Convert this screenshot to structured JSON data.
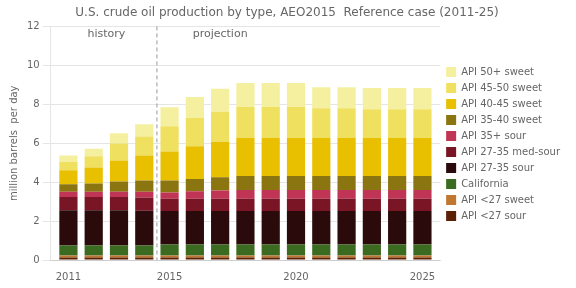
{
  "chart_data": {
    "type": "bar",
    "stacked": true,
    "title": "U.S. crude oil production by type, AEO2015  Reference case (2011-25)",
    "ylabel": "million barrels  per day",
    "x": [
      2011,
      2012,
      2013,
      2014,
      2015,
      2016,
      2017,
      2018,
      2019,
      2020,
      2021,
      2022,
      2023,
      2024,
      2025
    ],
    "xlim": [
      2010.3,
      2025.7
    ],
    "xticks": [
      2011,
      2015,
      2020,
      2025
    ],
    "ylim": [
      0,
      12
    ],
    "yticks": [
      0,
      2,
      4,
      6,
      8,
      10,
      12
    ],
    "grid": true,
    "legend": "right",
    "series": [
      {
        "name": "API <27 sour",
        "color": "#5c2005",
        "values": [
          0.13,
          0.13,
          0.13,
          0.13,
          0.13,
          0.13,
          0.13,
          0.13,
          0.13,
          0.13,
          0.13,
          0.13,
          0.13,
          0.13,
          0.13
        ]
      },
      {
        "name": "API <27 sweet",
        "color": "#c07830",
        "values": [
          0.1,
          0.1,
          0.1,
          0.1,
          0.1,
          0.1,
          0.1,
          0.1,
          0.1,
          0.1,
          0.1,
          0.1,
          0.1,
          0.1,
          0.1
        ]
      },
      {
        "name": "California",
        "color": "#3a6b20",
        "values": [
          0.52,
          0.52,
          0.52,
          0.52,
          0.57,
          0.57,
          0.57,
          0.57,
          0.57,
          0.57,
          0.57,
          0.57,
          0.57,
          0.57,
          0.57
        ]
      },
      {
        "name": "API 27-35 sour",
        "color": "#2a0a0a",
        "values": [
          1.8,
          1.8,
          1.8,
          1.78,
          1.72,
          1.72,
          1.72,
          1.72,
          1.72,
          1.72,
          1.72,
          1.72,
          1.72,
          1.72,
          1.72
        ]
      },
      {
        "name": "API 27-35 med-sour",
        "color": "#7a1525",
        "values": [
          0.68,
          0.68,
          0.68,
          0.68,
          0.63,
          0.63,
          0.63,
          0.63,
          0.63,
          0.63,
          0.63,
          0.63,
          0.63,
          0.63,
          0.63
        ]
      },
      {
        "name": "API 35+ sour",
        "color": "#c03555",
        "values": [
          0.28,
          0.28,
          0.28,
          0.3,
          0.32,
          0.38,
          0.42,
          0.45,
          0.45,
          0.45,
          0.45,
          0.45,
          0.45,
          0.45,
          0.45
        ]
      },
      {
        "name": "API 35-40 sweet",
        "color": "#8b7510",
        "values": [
          0.38,
          0.42,
          0.52,
          0.58,
          0.62,
          0.63,
          0.68,
          0.72,
          0.72,
          0.72,
          0.72,
          0.72,
          0.72,
          0.72,
          0.72
        ]
      },
      {
        "name": "API 40-45 sweet",
        "color": "#e8c000",
        "values": [
          0.72,
          0.82,
          1.08,
          1.28,
          1.48,
          1.68,
          1.82,
          1.95,
          1.95,
          1.95,
          1.95,
          1.95,
          1.95,
          1.95,
          1.95
        ]
      },
      {
        "name": "API 45-50 sweet",
        "color": "#f0e060",
        "values": [
          0.43,
          0.58,
          0.88,
          0.98,
          1.3,
          1.45,
          1.55,
          1.6,
          1.6,
          1.6,
          1.52,
          1.52,
          1.48,
          1.48,
          1.48
        ]
      },
      {
        "name": "API 50+ sweet",
        "color": "#f5f0a0",
        "values": [
          0.33,
          0.38,
          0.52,
          0.62,
          0.98,
          1.08,
          1.18,
          1.22,
          1.22,
          1.22,
          1.08,
          1.08,
          1.08,
          1.08,
          1.08
        ]
      }
    ],
    "annotations": [
      {
        "text": "history",
        "x": 2012.5,
        "y": 11.3
      },
      {
        "text": "projection",
        "x": 2017.0,
        "y": 11.3
      }
    ],
    "vlines": [
      {
        "x": 2014.5
      }
    ]
  }
}
